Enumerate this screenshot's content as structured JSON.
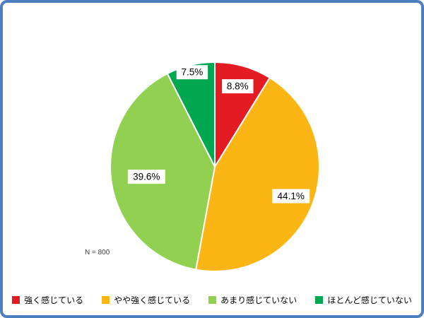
{
  "chart_data": {
    "type": "pie",
    "title": "",
    "categories": [
      "強く感じている",
      "やや強く感じている",
      "あまり感じていない",
      "ほとんど感じていない"
    ],
    "values": [
      8.8,
      44.1,
      39.6,
      7.5
    ],
    "labels": [
      "8.8%",
      "44.1%",
      "39.6%",
      "7.5%"
    ],
    "colors": [
      "#e31b23",
      "#fbb615",
      "#92d051",
      "#00a650"
    ],
    "start_angle_deg": 0,
    "direction": "clockwise",
    "annotation": "N = 800",
    "legend_position": "bottom"
  },
  "frame": {
    "border_color": "#4d7ebf",
    "background": "#ffffff"
  }
}
